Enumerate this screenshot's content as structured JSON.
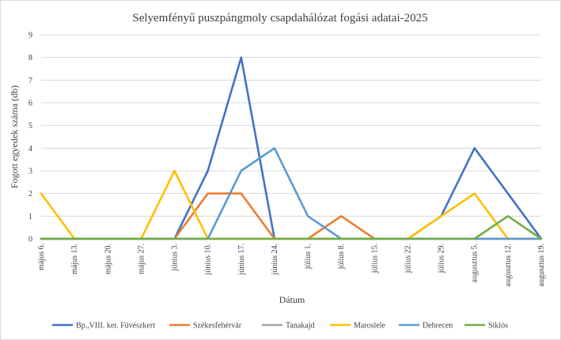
{
  "chart_data": {
    "type": "line",
    "title": "Selyemfényű puszpángmoly csapdahálózat fogási adatai-2025",
    "xlabel": "Dátum",
    "ylabel": "Fogott egyedek száma (db)",
    "ylim": [
      0,
      9
    ],
    "yticks": [
      0,
      1,
      2,
      3,
      4,
      5,
      6,
      7,
      8,
      9
    ],
    "grid": "horizontal",
    "legend_position": "bottom",
    "categories": [
      "május 6.",
      "május 13.",
      "május 20.",
      "május 27.",
      "június 3.",
      "június 10.",
      "június 17.",
      "június 24.",
      "július 1.",
      "július 8.",
      "július 15.",
      "július 22.",
      "július 29.",
      "augusztus 5.",
      "augusztus 12.",
      "augusztus 19."
    ],
    "series": [
      {
        "name": "Bp.,VIII. ker. Füvészkert",
        "color": "#4472C4",
        "values": [
          0,
          0,
          0,
          0,
          0,
          3,
          8,
          0,
          0,
          0,
          0,
          0,
          1,
          4,
          2,
          0
        ]
      },
      {
        "name": "Székesfehérvár",
        "color": "#ED7D31",
        "values": [
          0,
          0,
          0,
          0,
          0,
          2,
          2,
          0,
          0,
          1,
          0,
          0,
          0,
          0,
          0,
          0
        ]
      },
      {
        "name": "Tanakajd",
        "color": "#A5A5A5",
        "values": [
          0,
          0,
          0,
          0,
          0,
          0,
          0,
          0,
          0,
          0,
          0,
          0,
          0,
          0,
          0,
          0
        ]
      },
      {
        "name": "Maroslele",
        "color": "#FFC000",
        "values": [
          2,
          0,
          0,
          0,
          3,
          0,
          0,
          0,
          0,
          0,
          0,
          0,
          1,
          2,
          0,
          0
        ]
      },
      {
        "name": "Debrecen",
        "color": "#5B9BD5",
        "values": [
          0,
          0,
          0,
          0,
          0,
          0,
          3,
          4,
          1,
          0,
          0,
          0,
          0,
          0,
          0,
          0
        ]
      },
      {
        "name": "Siklós",
        "color": "#70AD47",
        "values": [
          0,
          0,
          0,
          0,
          0,
          0,
          0,
          0,
          0,
          0,
          0,
          0,
          0,
          0,
          1,
          0
        ]
      }
    ]
  }
}
